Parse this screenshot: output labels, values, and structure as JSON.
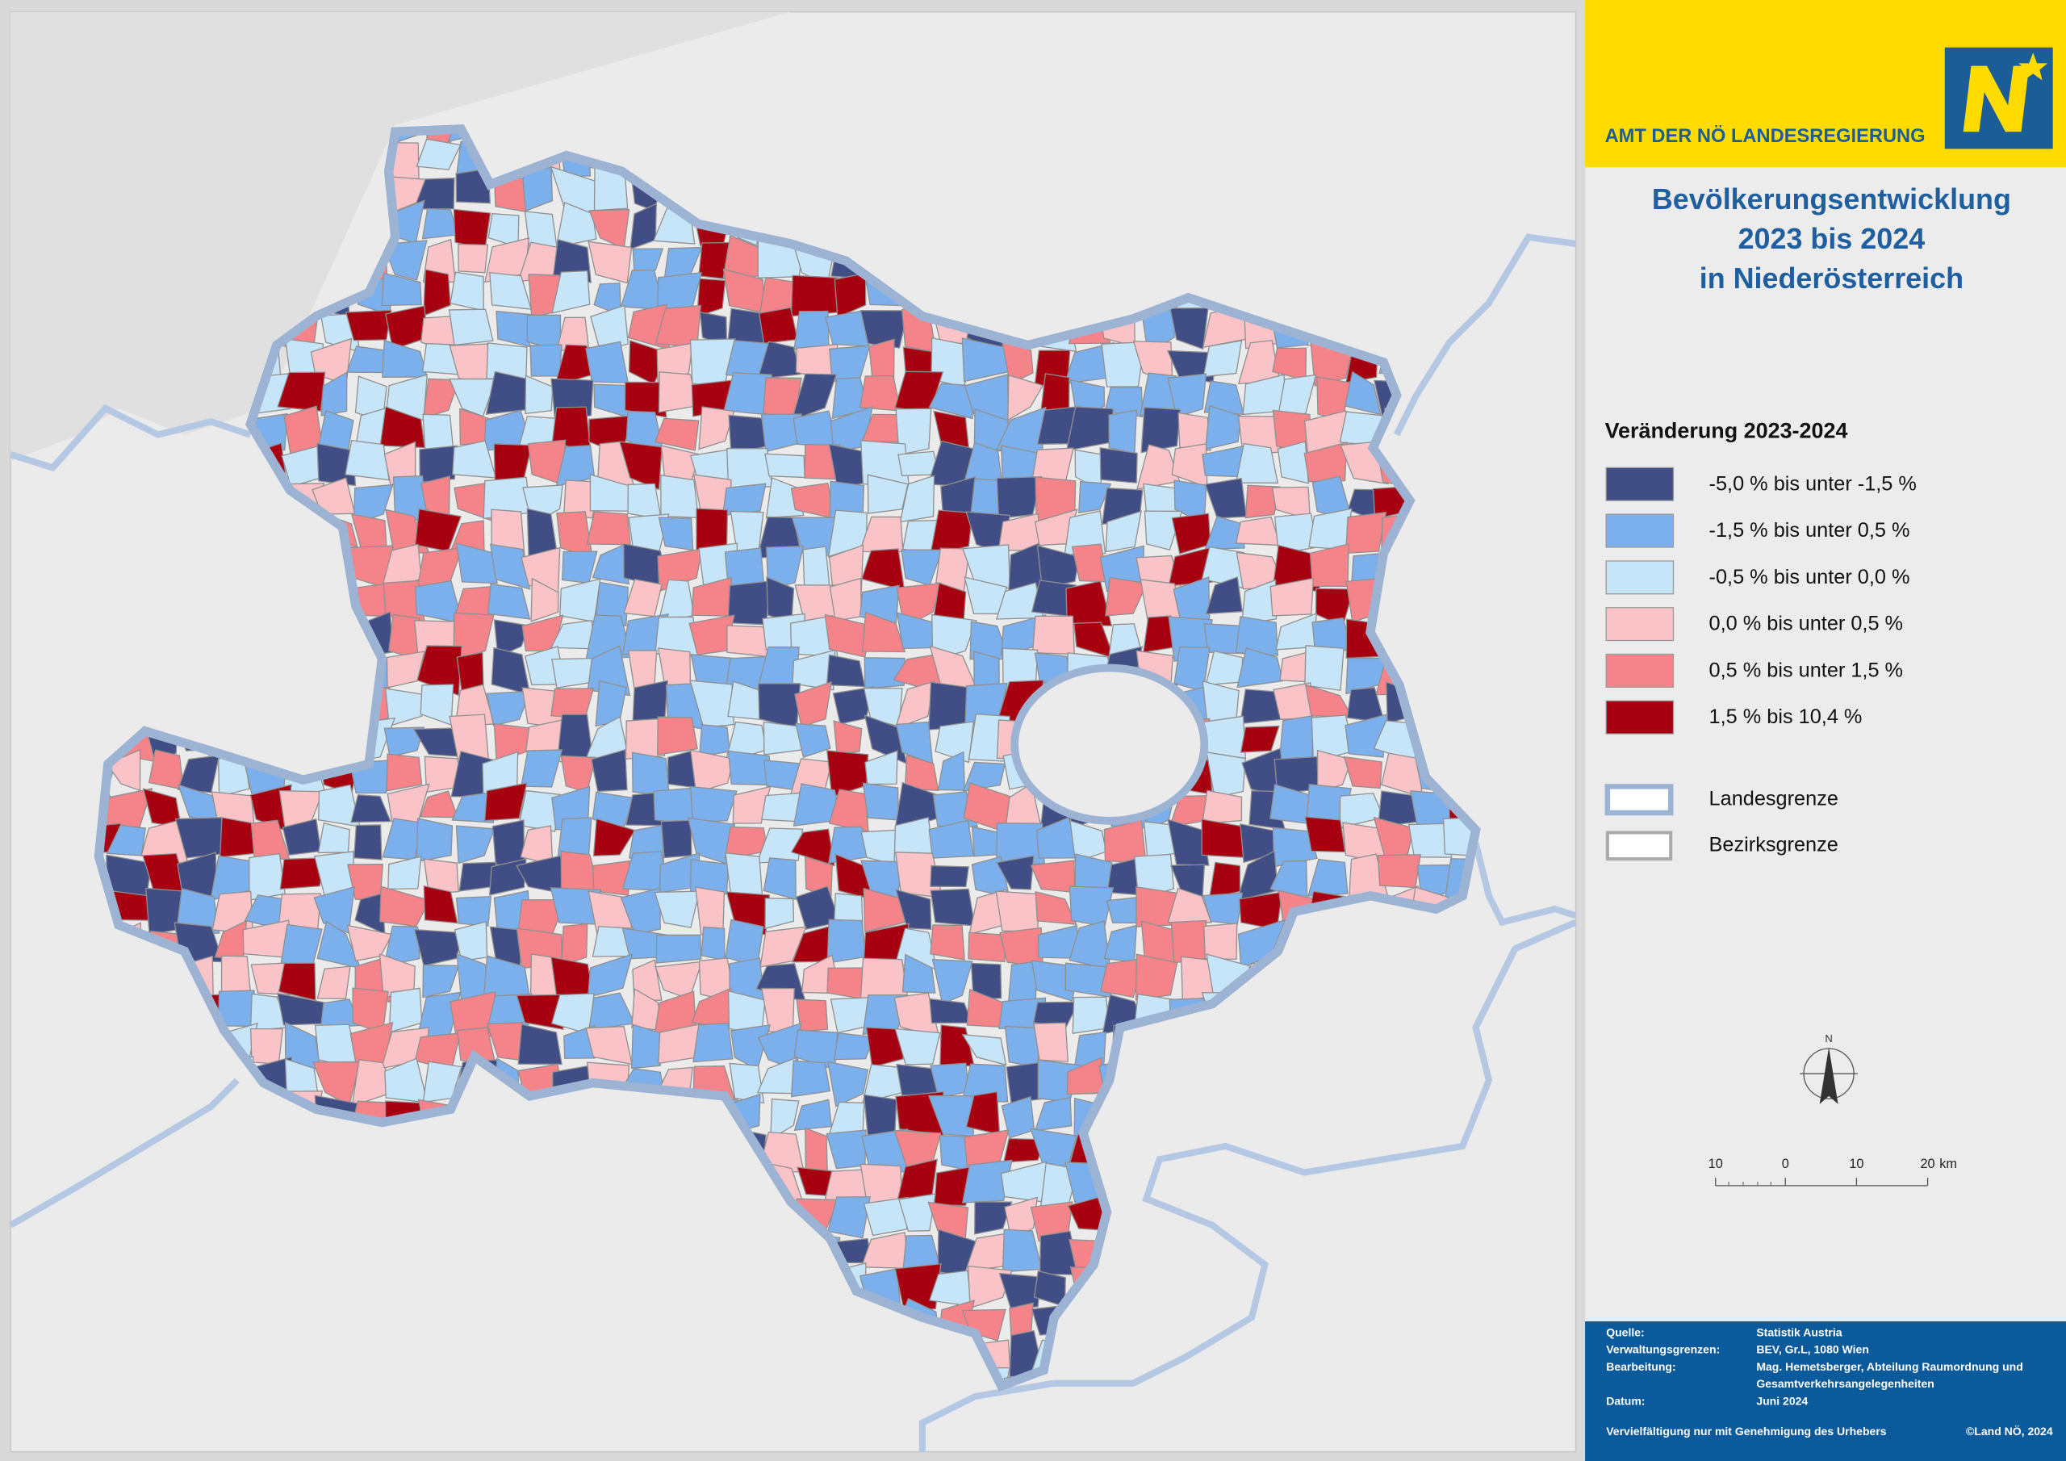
{
  "header": {
    "office": "AMT DER NÖ LANDESREGIERUNG"
  },
  "title": {
    "lines": [
      "Bevölkerungsentwicklung",
      "2023 bis 2024",
      "in Niederösterreich"
    ]
  },
  "legend": {
    "title": "Veränderung 2023-2024",
    "classes": [
      {
        "label": "-5,0 % bis unter -1,5 %",
        "color": "#414e86"
      },
      {
        "label": "-1,5 % bis unter 0,5 %",
        "color": "#7cb0ec"
      },
      {
        "label": "-0,5 % bis unter 0,0 %",
        "color": "#c7e5f8"
      },
      {
        "label": "0,0 % bis unter 0,5 %",
        "color": "#fac3c8"
      },
      {
        "label": "0,5 % bis unter 1,5 %",
        "color": "#f5848a"
      },
      {
        "label": "1,5 % bis 10,4 %",
        "color": "#a60011"
      }
    ],
    "borders": [
      {
        "label": "Landesgrenze"
      },
      {
        "label": "Bezirksgrenze"
      }
    ]
  },
  "north": "N",
  "scale": {
    "labels": [
      "10",
      "0",
      "10",
      "20"
    ],
    "unit": "km"
  },
  "footer": {
    "rows": [
      {
        "label": "Quelle:",
        "lines": [
          "Statistik Austria"
        ]
      },
      {
        "label": "Verwaltungsgrenzen:",
        "lines": [
          "BEV, Gr.L, 1080 Wien"
        ]
      },
      {
        "label": "Bearbeitung:",
        "lines": [
          "Mag. Hemetsberger, Abteilung Raumordnung und",
          "Gesamtverkehrsangelegenheiten"
        ]
      },
      {
        "label": "Datum:",
        "lines": [
          "Juni 2024"
        ]
      }
    ],
    "notice": "Vervielfältigung nur mit Genehmigung des Urhebers",
    "copyright": "©Land NÖ, 2024"
  }
}
